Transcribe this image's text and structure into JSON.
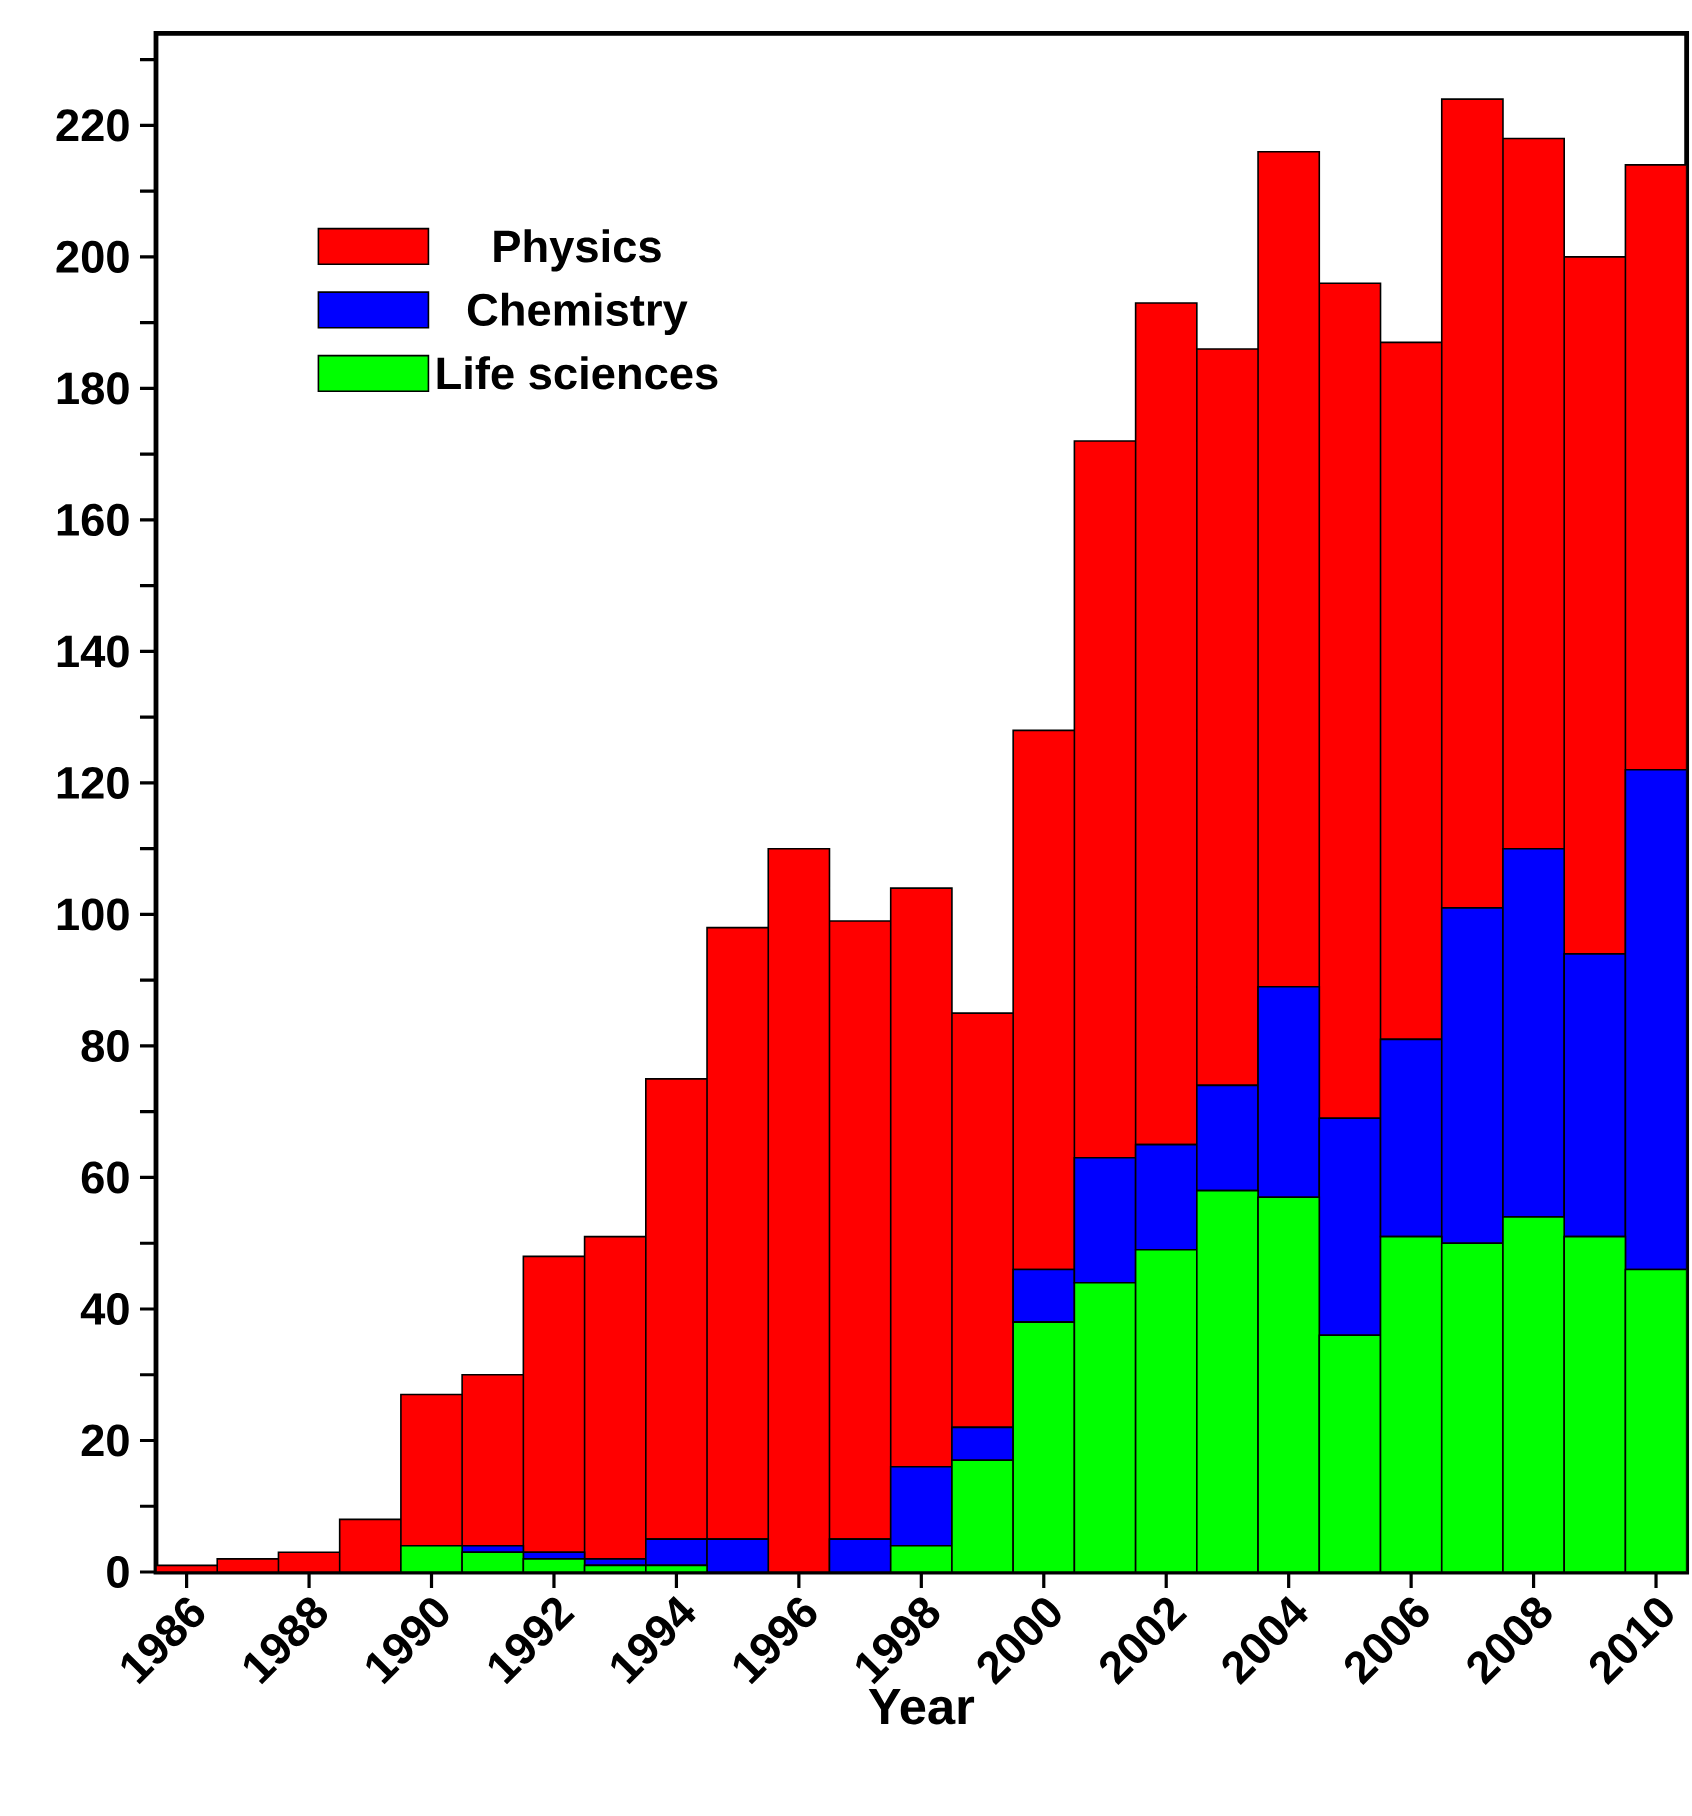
{
  "chart_data": {
    "type": "bar",
    "stacked": true,
    "xlabel": "Year",
    "categories": [
      "1986",
      null,
      "1988",
      null,
      "1990",
      null,
      "1992",
      null,
      "1994",
      null,
      "1996",
      null,
      "1998",
      null,
      "2000",
      null,
      "2002",
      null,
      "2004",
      null,
      "2006",
      null,
      "2008",
      null,
      "2010"
    ],
    "series": [
      {
        "name": "Life sciences",
        "color": "#00ff00",
        "values": [
          0,
          0,
          0,
          0,
          4,
          3,
          2,
          1,
          1,
          0,
          0,
          0,
          4,
          17,
          38,
          44,
          49,
          58,
          57,
          36,
          51,
          50,
          54,
          51,
          46
        ]
      },
      {
        "name": "Chemistry",
        "color": "#0000ff",
        "values": [
          0,
          0,
          0,
          0,
          0,
          1,
          1,
          1,
          4,
          5,
          0,
          5,
          12,
          5,
          8,
          19,
          16,
          16,
          32,
          33,
          30,
          51,
          56,
          43,
          76
        ]
      },
      {
        "name": "Physics",
        "color": "#ff0000",
        "values": [
          1,
          2,
          3,
          8,
          23,
          26,
          45,
          49,
          70,
          93,
          110,
          94,
          88,
          63,
          82,
          109,
          128,
          112,
          127,
          127,
          106,
          123,
          108,
          106,
          92
        ]
      }
    ],
    "ylim": [
      0,
      234
    ],
    "yticks": [
      0,
      {
        "value": 10,
        "label": null
      },
      20,
      {
        "value": 30,
        "label": null
      },
      40,
      {
        "value": 50,
        "label": null
      },
      60,
      {
        "value": 70,
        "label": null
      },
      80,
      {
        "value": 90,
        "label": null
      },
      100,
      {
        "value": 110,
        "label": null
      },
      120,
      {
        "value": 130,
        "label": null
      },
      140,
      {
        "value": 150,
        "label": null
      },
      160,
      {
        "value": 170,
        "label": null
      },
      180,
      {
        "value": 190,
        "label": null
      },
      200,
      {
        "value": 210,
        "label": null
      },
      220,
      {
        "value": 230,
        "label": null
      }
    ],
    "legend": "top left"
  }
}
